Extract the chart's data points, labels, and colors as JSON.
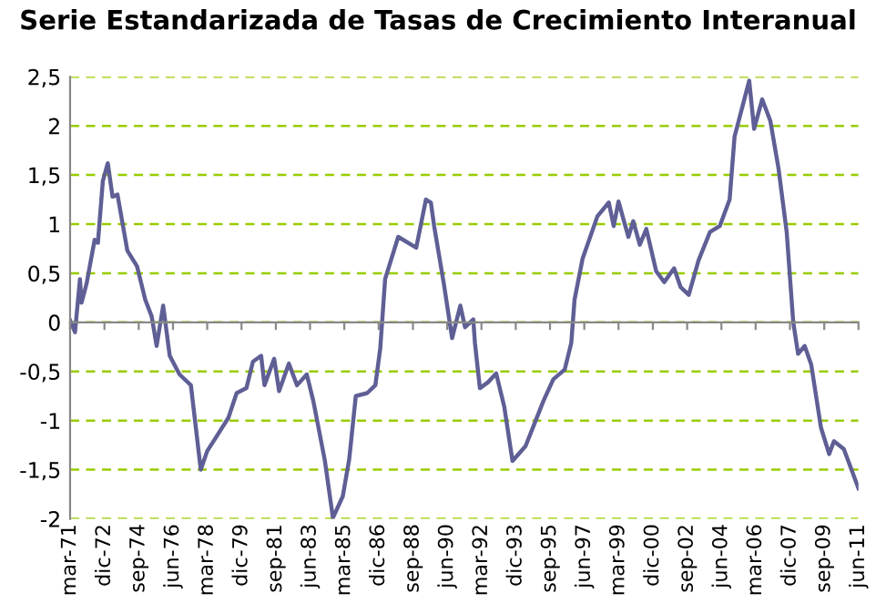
{
  "chart_data": {
    "type": "line",
    "title": "Serie Estandarizada de Tasas de Crecimiento Interanual",
    "x": [
      "1971-03",
      "1971-06",
      "1971-09",
      "1971-10",
      "1972-01",
      "1972-06",
      "1972-08",
      "1972-11",
      "1973-02",
      "1973-05",
      "1973-08",
      "1974-02",
      "1974-08",
      "1975-01",
      "1975-05",
      "1975-08",
      "1975-12",
      "1976-04",
      "1976-10",
      "1977-05",
      "1977-11",
      "1978-03",
      "1978-08",
      "1979-04",
      "1979-09",
      "1980-03",
      "1980-07",
      "1980-12",
      "1981-02",
      "1981-08",
      "1981-11",
      "1982-05",
      "1982-10",
      "1983-04",
      "1983-08",
      "1984-03",
      "1984-08",
      "1985-02",
      "1985-06",
      "1985-10",
      "1986-05",
      "1986-10",
      "1987-01",
      "1987-04",
      "1987-12",
      "1988-11",
      "1989-05",
      "1989-08",
      "1989-10",
      "1990-04",
      "1990-09",
      "1991-02",
      "1991-05",
      "1991-10",
      "1991-11",
      "1992-02",
      "1992-07",
      "1992-12",
      "1993-05",
      "1993-10",
      "1994-06",
      "1994-11",
      "1995-05",
      "1995-11",
      "1996-06",
      "1996-10",
      "1996-12",
      "1997-05",
      "1998-02",
      "1998-09",
      "1998-12",
      "1999-03",
      "1999-09",
      "1999-12",
      "2000-04",
      "2000-08",
      "2001-02",
      "2001-07",
      "2002-01",
      "2002-05",
      "2002-10",
      "2003-04",
      "2003-11",
      "2004-05",
      "2004-11",
      "2005-02",
      "2005-11",
      "2006-02",
      "2006-07",
      "2006-12",
      "2007-05",
      "2007-10",
      "2008-02",
      "2008-05",
      "2008-09",
      "2009-01",
      "2009-07",
      "2009-12",
      "2010-03",
      "2010-09",
      "2011-06"
    ],
    "series": [
      {
        "color": "#5f5f96",
        "values": [
          0.02,
          -0.1,
          0.44,
          0.2,
          0.39,
          0.84,
          0.81,
          1.44,
          1.62,
          1.28,
          1.3,
          0.73,
          0.57,
          0.23,
          0.06,
          -0.24,
          0.17,
          -0.34,
          -0.53,
          -0.64,
          -1.5,
          -1.31,
          -1.18,
          -0.97,
          -0.72,
          -0.67,
          -0.4,
          -0.34,
          -0.64,
          -0.37,
          -0.7,
          -0.42,
          -0.64,
          -0.53,
          -0.8,
          -1.4,
          -1.99,
          -1.77,
          -1.39,
          -0.75,
          -0.72,
          -0.64,
          -0.26,
          0.44,
          0.87,
          0.76,
          1.25,
          1.22,
          0.98,
          0.39,
          -0.16,
          0.17,
          -0.05,
          0.03,
          -0.21,
          -0.67,
          -0.61,
          -0.52,
          -0.86,
          -1.41,
          -1.26,
          -1.05,
          -0.8,
          -0.58,
          -0.48,
          -0.21,
          0.23,
          0.65,
          1.08,
          1.22,
          0.98,
          1.23,
          0.87,
          1.03,
          0.79,
          0.95,
          0.52,
          0.41,
          0.55,
          0.36,
          0.28,
          0.63,
          0.92,
          0.98,
          1.25,
          1.89,
          2.46,
          1.97,
          2.27,
          2.05,
          1.57,
          0.92,
          0.0,
          -0.32,
          -0.24,
          -0.43,
          -1.07,
          -1.34,
          -1.21,
          -1.29,
          -1.69
        ]
      }
    ],
    "xlim": [
      "1971-03",
      "2011-06"
    ],
    "xticks": [
      {
        "value": "1971-03",
        "label": "mar-71"
      },
      {
        "value": "1972-12",
        "label": "dic-72"
      },
      {
        "value": "1974-09",
        "label": "sep-74"
      },
      {
        "value": "1976-06",
        "label": "jun-76"
      },
      {
        "value": "1978-03",
        "label": "mar-78"
      },
      {
        "value": "1979-12",
        "label": "dic-79"
      },
      {
        "value": "1981-09",
        "label": "sep-81"
      },
      {
        "value": "1983-06",
        "label": "jun-83"
      },
      {
        "value": "1985-03",
        "label": "mar-85"
      },
      {
        "value": "1986-12",
        "label": "dic-86"
      },
      {
        "value": "1988-09",
        "label": "sep-88"
      },
      {
        "value": "1990-06",
        "label": "jun-90"
      },
      {
        "value": "1992-03",
        "label": "mar-92"
      },
      {
        "value": "1993-12",
        "label": "dic-93"
      },
      {
        "value": "1995-09",
        "label": "sep-95"
      },
      {
        "value": "1997-06",
        "label": "jun-97"
      },
      {
        "value": "1999-03",
        "label": "mar-99"
      },
      {
        "value": "2000-12",
        "label": "dic-00"
      },
      {
        "value": "2002-09",
        "label": "sep-02"
      },
      {
        "value": "2004-06",
        "label": "jun-04"
      },
      {
        "value": "2006-03",
        "label": "mar-06"
      },
      {
        "value": "2007-12",
        "label": "dic-07"
      },
      {
        "value": "2009-09",
        "label": "sep-09"
      },
      {
        "value": "2011-06",
        "label": "jun-11"
      }
    ],
    "ylim": [
      -2,
      2.5
    ],
    "yticks": [
      {
        "value": -2,
        "label": "-2"
      },
      {
        "value": -1.5,
        "label": "-1,5"
      },
      {
        "value": -1,
        "label": "-1"
      },
      {
        "value": -0.5,
        "label": "-0,5"
      },
      0,
      {
        "value": 0.5,
        "label": "0,5"
      },
      1,
      {
        "value": 1.5,
        "label": "1,5"
      },
      2,
      {
        "value": 2.5,
        "label": "2,5"
      }
    ],
    "grid": "y",
    "marker": "none",
    "line_style": "solid"
  }
}
